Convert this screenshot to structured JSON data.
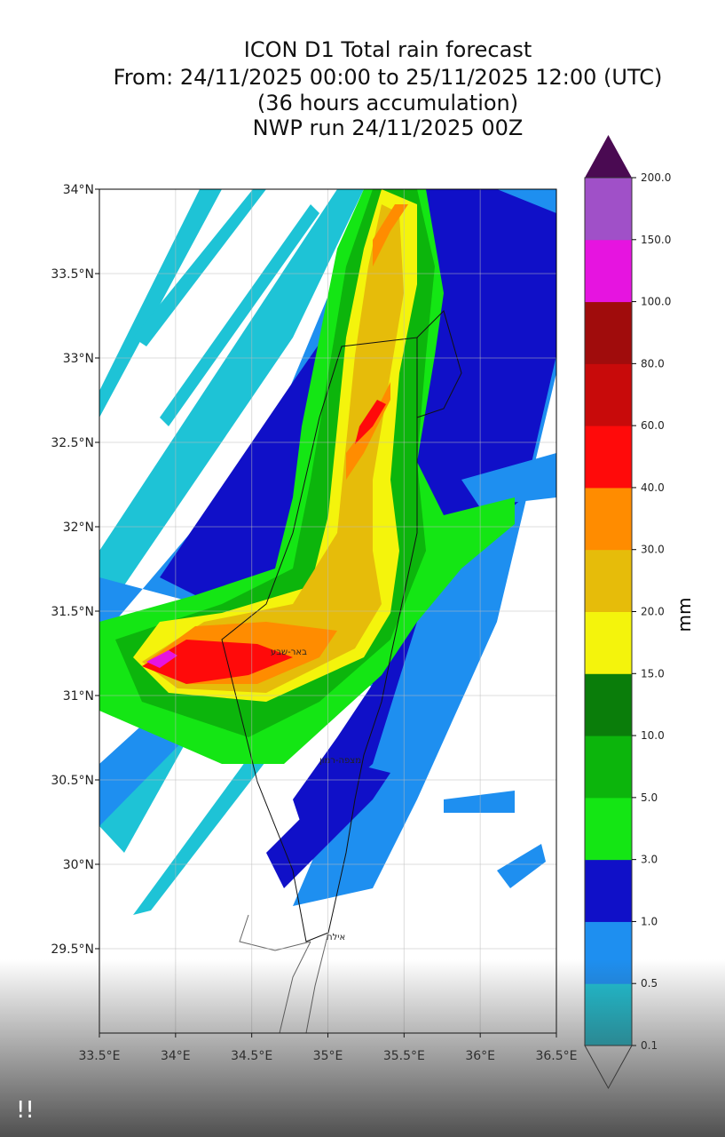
{
  "title_lines": [
    "ICON D1 Total rain forecast",
    "From: 24/11/2025 00:00 to 25/11/2025 12:00 (UTC)",
    "(36 hours accumulation)",
    "NWP run 24/11/2025 00Z"
  ],
  "map": {
    "xlim": [
      33.5,
      36.5
    ],
    "ylim": [
      29,
      34
    ],
    "grid": true,
    "xticks": [
      {
        "value": 33.5,
        "label": "33.5°E"
      },
      {
        "value": 34,
        "label": "34°E"
      },
      {
        "value": 34.5,
        "label": "34.5°E"
      },
      {
        "value": 35,
        "label": "35°E"
      },
      {
        "value": 35.5,
        "label": "35.5°E"
      },
      {
        "value": 36,
        "label": "36°E"
      },
      {
        "value": 36.5,
        "label": "36.5°E"
      }
    ],
    "yticks": [
      {
        "value": 29.5,
        "label": "29.5°N"
      },
      {
        "value": 30,
        "label": "30°N"
      },
      {
        "value": 30.5,
        "label": "30.5°N"
      },
      {
        "value": 31,
        "label": "31°N"
      },
      {
        "value": 31.5,
        "label": "31.5°N"
      },
      {
        "value": 32,
        "label": "32°N"
      },
      {
        "value": 32.5,
        "label": "32.5°N"
      },
      {
        "value": 33,
        "label": "33°N"
      },
      {
        "value": 33.5,
        "label": "33.5°N"
      },
      {
        "value": 34,
        "label": "34°N"
      }
    ],
    "place_labels": [
      "באר-שבע",
      "מצפה-רמון",
      "אילת"
    ]
  },
  "colorbar": {
    "label": "mm",
    "levels": [
      {
        "value": 0.1,
        "label": "0.1"
      },
      {
        "value": 0.5,
        "label": "0.5"
      },
      {
        "value": 1,
        "label": "1.0"
      },
      {
        "value": 3,
        "label": "3.0"
      },
      {
        "value": 5,
        "label": "5.0"
      },
      {
        "value": 10,
        "label": "10.0"
      },
      {
        "value": 15,
        "label": "15.0"
      },
      {
        "value": 20,
        "label": "20.0"
      },
      {
        "value": 30,
        "label": "30.0"
      },
      {
        "value": 40,
        "label": "40.0"
      },
      {
        "value": 60,
        "label": "60.0"
      },
      {
        "value": 80,
        "label": "80.0"
      },
      {
        "value": 100,
        "label": "100.0"
      },
      {
        "value": 150,
        "label": "150.0"
      },
      {
        "value": 200,
        "label": "200.0"
      }
    ],
    "colors": [
      "#1ec3d6",
      "#1e8ff0",
      "#1010c8",
      "#14e614",
      "#0cb50c",
      "#0a7d0a",
      "#f4f40c",
      "#e6bc0a",
      "#ff8c00",
      "#ff0a0a",
      "#c80a0a",
      "#a00c0c",
      "#e614e0",
      "#a050c8"
    ],
    "over_color": "#4a0a52",
    "under_color": "#ffffff"
  },
  "overlay_text": "!!"
}
